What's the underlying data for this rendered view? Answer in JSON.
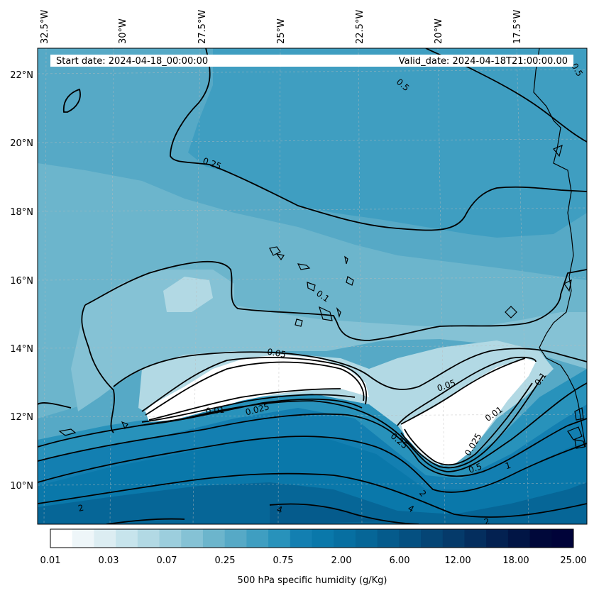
{
  "header": {
    "start_date": "Start date: 2024-04-18_00:00:00",
    "valid_date": "Valid_date: 2024-04-18T21:00:00.00"
  },
  "axes": {
    "lon_labels": [
      "32.5°W",
      "30°W",
      "27.5°W",
      "25°W",
      "22.5°W",
      "20°W",
      "17.5°W"
    ],
    "lat_labels": [
      "22°N",
      "20°N",
      "18°N",
      "16°N",
      "14°N",
      "12°N",
      "10°N"
    ]
  },
  "contour_labels": [
    "0.25",
    "0.5",
    "0.5",
    "0.1",
    "0.05",
    "0.01",
    "0.025",
    "0.05",
    "0.1",
    "0.01",
    "0.025",
    "0.25",
    "0.5",
    "1",
    "2",
    "2",
    "4",
    "4",
    "2"
  ],
  "colorbar": {
    "tick_labels": [
      "0.01",
      "0.03",
      "0.07",
      "0.25",
      "0.75",
      "2.00",
      "6.00",
      "12.00",
      "18.00",
      "25.00"
    ],
    "label": "500 hPa specific humidity (g/Kg)",
    "colors": [
      "#ffffff",
      "#eef6f9",
      "#dcedf2",
      "#c7e4ec",
      "#b2d9e4",
      "#9ccedd",
      "#85c2d5",
      "#6cb5cc",
      "#56a9c6",
      "#3f9ec1",
      "#2892bb",
      "#137fb1",
      "#0a78aa",
      "#076fa1",
      "#066697",
      "#055b8c",
      "#055081",
      "#054575",
      "#053a6a",
      "#042e5e",
      "#032151",
      "#011545",
      "#00083a",
      "#000339"
    ]
  },
  "fills": {
    "band_1": "#3f9ec1",
    "band_2": "#56a9c6",
    "band_3": "#6cb5cc",
    "band_4": "#85c2d5",
    "band_5": "#9ccedd",
    "band_6": "#b2d9e4",
    "band_7": "#2892bb",
    "band_8": "#137fb1",
    "band_9": "#0a78aa",
    "band_10": "#066697",
    "band_11": "#055b8c"
  }
}
